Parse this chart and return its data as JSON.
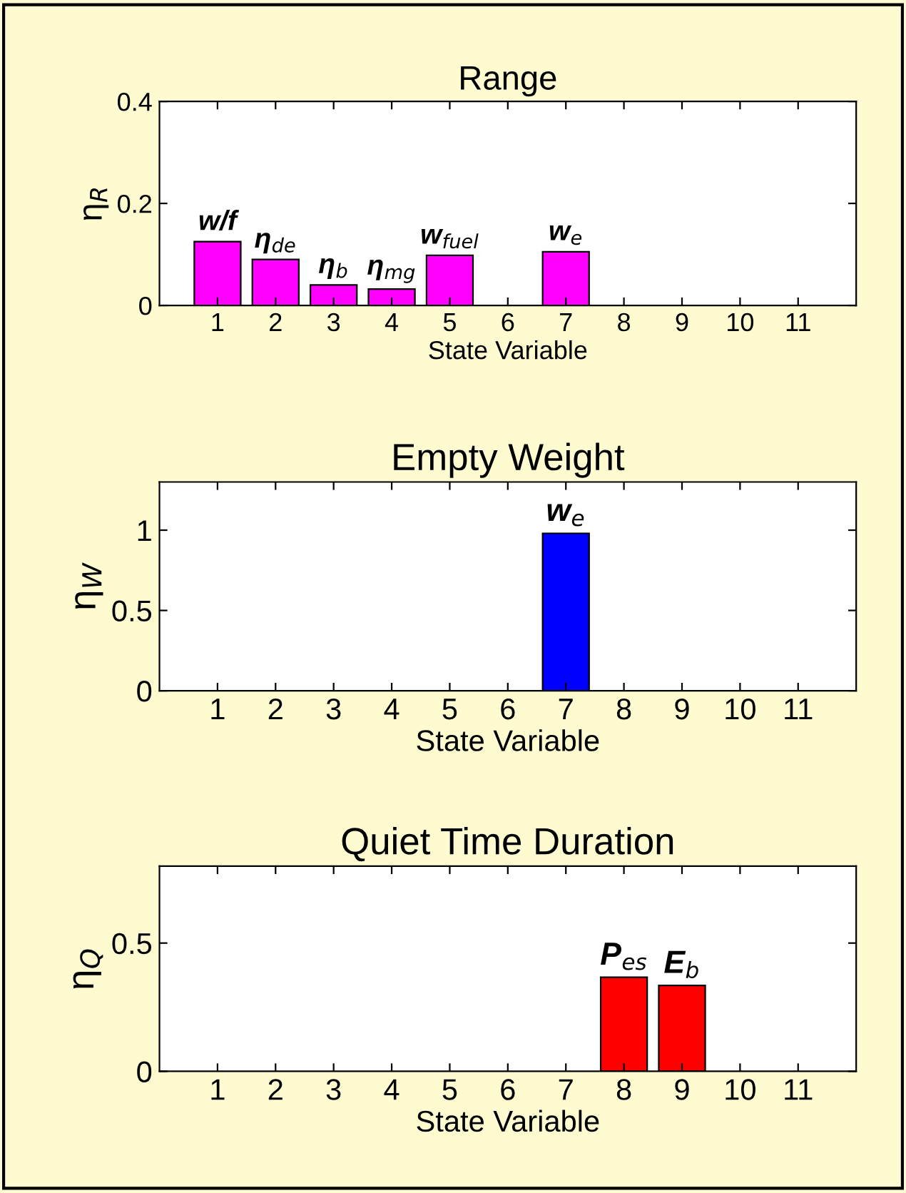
{
  "chart_data": [
    {
      "type": "bar",
      "title": "Range",
      "xlabel": "State Variable",
      "ylabel": "η$_{R}$",
      "x": [
        1,
        2,
        3,
        4,
        5,
        6,
        7,
        8,
        9,
        10,
        11
      ],
      "values": [
        0.125,
        0.09,
        0.04,
        0.032,
        0.098,
        0,
        0.105,
        0,
        0,
        0,
        0
      ],
      "color": "#ff00ff",
      "xlim": [
        0,
        12
      ],
      "xticks": [
        1,
        2,
        3,
        4,
        5,
        6,
        7,
        8,
        9,
        10,
        11
      ],
      "ylim": [
        0,
        0.4
      ],
      "yticks": [
        0,
        0.2,
        0.4
      ],
      "grid": false,
      "annotations": [
        {
          "text": "w/f",
          "x": 1,
          "y": 0.125
        },
        {
          "text": "η$_{de}$",
          "x": 2,
          "y": 0.09
        },
        {
          "text": "η$_{b}$",
          "x": 3,
          "y": 0.04
        },
        {
          "text": "η$_{mg}$",
          "x": 4,
          "y": 0.032
        },
        {
          "text": "w$_{fuel}$",
          "x": 5,
          "y": 0.098
        },
        {
          "text": "w$_{e}$",
          "x": 7,
          "y": 0.105
        }
      ]
    },
    {
      "type": "bar",
      "title": "Empty Weight",
      "xlabel": "State Variable",
      "ylabel": "η$_{W}$",
      "x": [
        1,
        2,
        3,
        4,
        5,
        6,
        7,
        8,
        9,
        10,
        11
      ],
      "values": [
        0,
        0,
        0,
        0,
        0,
        0,
        0.98,
        0,
        0,
        0,
        0
      ],
      "color": "#0000ff",
      "xlim": [
        0,
        12
      ],
      "xticks": [
        1,
        2,
        3,
        4,
        5,
        6,
        7,
        8,
        9,
        10,
        11
      ],
      "ylim": [
        0,
        1.3
      ],
      "yticks": [
        0,
        0.5,
        1
      ],
      "grid": false,
      "annotations": [
        {
          "text": "w$_{e}$",
          "x": 7,
          "y": 0.98
        }
      ]
    },
    {
      "type": "bar",
      "title": "Quiet Time Duration",
      "xlabel": "State Variable",
      "ylabel": "η$_{Q}$",
      "x": [
        1,
        2,
        3,
        4,
        5,
        6,
        7,
        8,
        9,
        10,
        11
      ],
      "values": [
        0,
        0,
        0,
        0,
        0,
        0,
        0,
        0.367,
        0.335,
        0,
        0
      ],
      "color": "#ff0000",
      "xlim": [
        0,
        12
      ],
      "xticks": [
        1,
        2,
        3,
        4,
        5,
        6,
        7,
        8,
        9,
        10,
        11
      ],
      "ylim": [
        0,
        0.8
      ],
      "yticks": [
        0,
        0.5
      ],
      "grid": false,
      "annotations": [
        {
          "text": "P$_{es}$",
          "x": 8,
          "y": 0.367
        },
        {
          "text": "E$_{b}$",
          "x": 9,
          "y": 0.335
        }
      ]
    }
  ]
}
